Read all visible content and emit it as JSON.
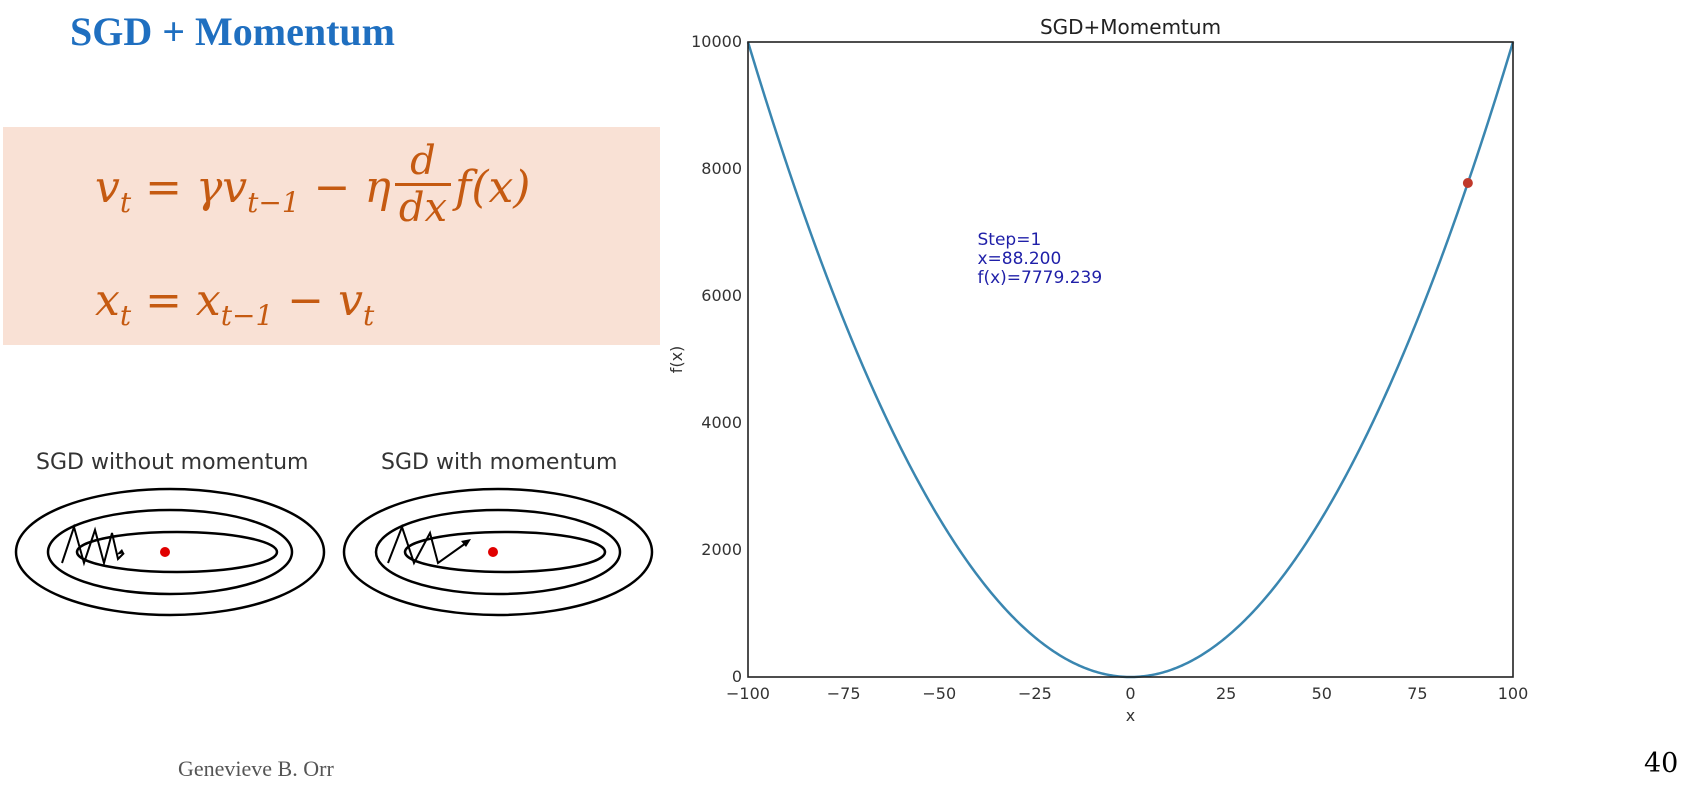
{
  "slide": {
    "title": "SGD + Momentum",
    "footer": "Genevieve B. Orr",
    "page_number": "40"
  },
  "formula": {
    "line1": {
      "v": "v",
      "t": "t",
      "eq_gamma_v": " = γv",
      "t_minus_1": "t−1",
      "minus_eta": " −  η",
      "d": "d",
      "dx": "dx",
      "fx": "f(x)"
    },
    "line2": {
      "x": "x",
      "t": "t",
      "eq_x": " = x",
      "t_minus_1": "t−1",
      "minus_v": " − v",
      "t2": "t"
    },
    "color": "#c55a11",
    "background": "#f9e1d5"
  },
  "illustrations": {
    "left_label": "SGD without momentum",
    "right_label": "SGD with  momentum"
  },
  "colors": {
    "title": "#1f6fc0",
    "curve": "#3a86b0",
    "point": "#c0392b",
    "annotation": "#1f1fa8",
    "minimum_dot": "#e00000"
  },
  "chart_data": {
    "type": "line",
    "title": "SGD+Momemtum",
    "xlabel": "x",
    "ylabel": "f(x)",
    "xlim": [
      -100,
      100
    ],
    "ylim": [
      0,
      10000
    ],
    "xticks": [
      -100,
      -75,
      -50,
      -25,
      0,
      25,
      50,
      75,
      100
    ],
    "xtick_labels": [
      "−100",
      "−75",
      "−50",
      "−25",
      "0",
      "25",
      "50",
      "75",
      "100"
    ],
    "yticks": [
      0,
      2000,
      4000,
      6000,
      8000,
      10000
    ],
    "ytick_labels": [
      "0",
      "2000",
      "4000",
      "6000",
      "8000",
      "10000"
    ],
    "grid": false,
    "series": [
      {
        "function": "x^2",
        "x_start": -100,
        "x_end": 100
      }
    ],
    "point": {
      "x": 88.2,
      "y": 7779.239
    },
    "annotation": {
      "lines": [
        "Step=1",
        "x=88.200",
        "f(x)=7779.239"
      ],
      "x": -40,
      "y": 6800
    }
  }
}
